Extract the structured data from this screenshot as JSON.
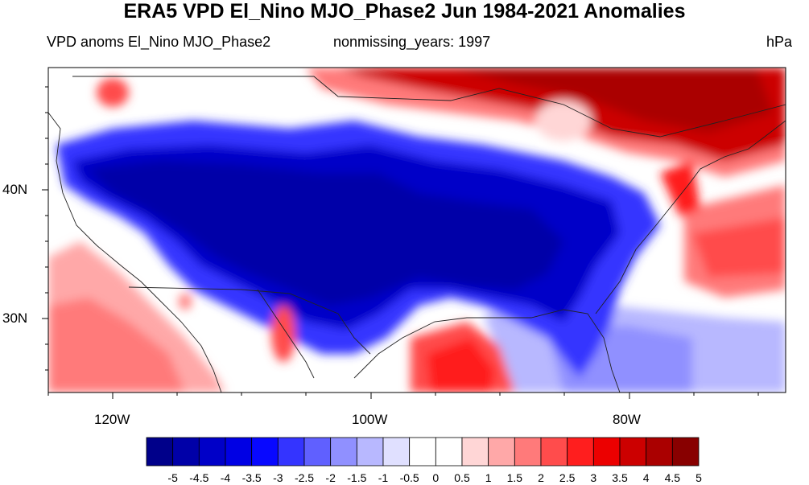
{
  "title": "ERA5 VPD El_Nino MJO_Phase2 Jun 1984-2021 Anomalies",
  "subtitle_left": "VPD anoms El_Nino MJO_Phase2",
  "subtitle_center": "nonmissing_years: 1997",
  "subtitle_right": "hPa",
  "axes": {
    "lat_labels": [
      "40N",
      "30N"
    ],
    "lon_labels": [
      "120W",
      "100W",
      "80W"
    ],
    "lat_range": [
      24,
      49
    ],
    "lon_range": [
      -125,
      -67
    ]
  },
  "colorbar": {
    "labels": [
      "-5",
      "-4.5",
      "-4",
      "-3.5",
      "-3",
      "-2.5",
      "-2",
      "-1.5",
      "-1",
      "-0.5",
      "0",
      "0.5",
      "1",
      "1.5",
      "2",
      "2.5",
      "3",
      "3.5",
      "4",
      "4.5",
      "5"
    ],
    "colors": [
      "#00008a",
      "#0000a8",
      "#0000c8",
      "#0000e4",
      "#0808ff",
      "#3434ff",
      "#6060ff",
      "#9090ff",
      "#b8b8ff",
      "#e0e0ff",
      "#ffffff",
      "#ffffff",
      "#ffd6d6",
      "#ffa8a8",
      "#ff7a7a",
      "#ff4c4c",
      "#ff1e1e",
      "#ec0000",
      "#cc0000",
      "#aa0000",
      "#880000"
    ]
  },
  "colors": {
    "strong_negative": "#0000a8",
    "moderate_negative": "#3434ff",
    "weak_negative": "#b8b8ff",
    "neutral": "#ffffff",
    "weak_positive": "#ffd6d6",
    "moderate_positive": "#ff4c4c",
    "strong_positive": "#aa0000"
  }
}
